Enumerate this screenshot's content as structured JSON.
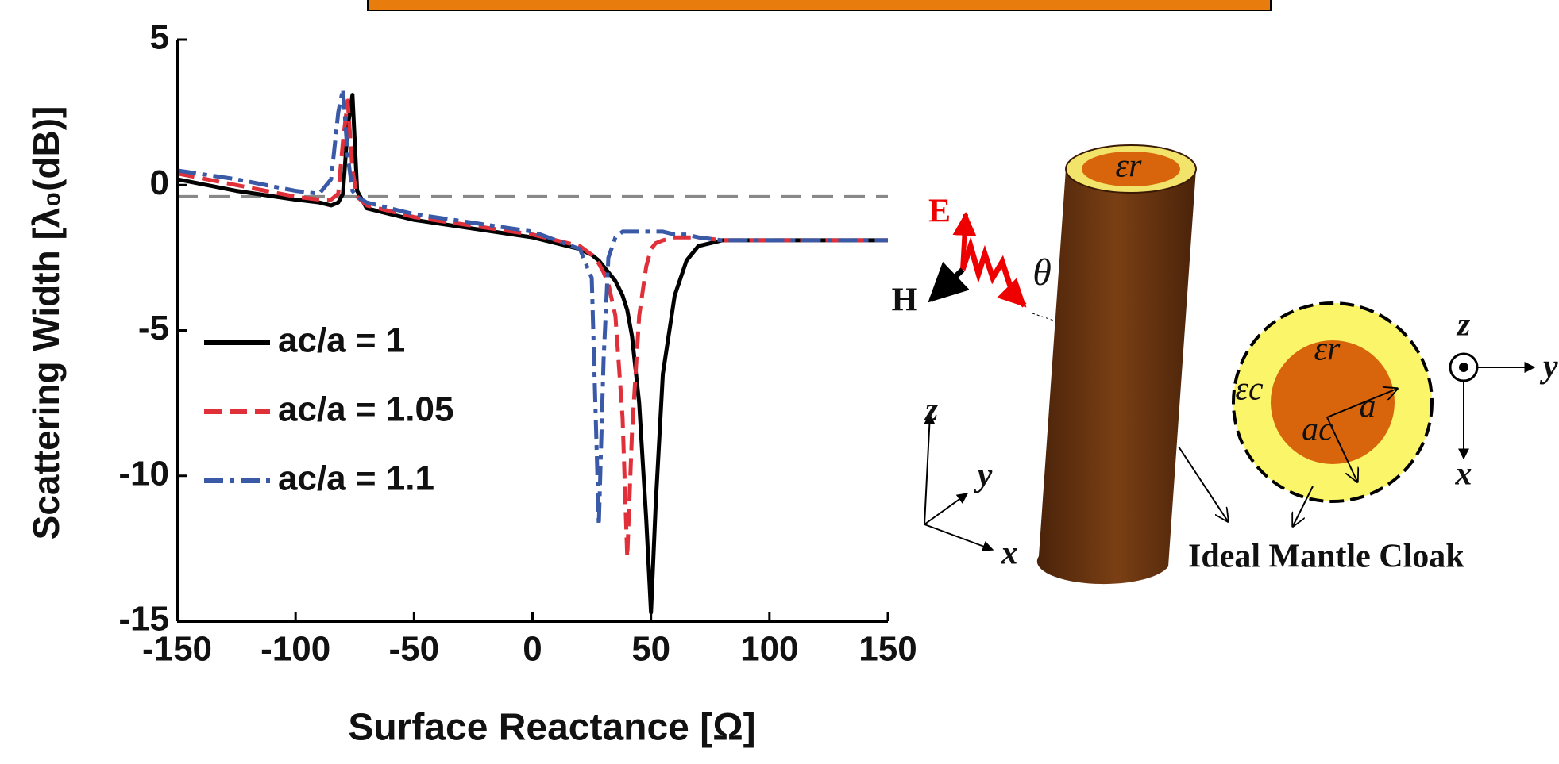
{
  "chart_data": {
    "type": "line",
    "x_label": "Surface Reactance [Ω]",
    "y_label": "Scattering Width [λ₀(dB)]",
    "x": [
      -150,
      -125,
      -100,
      -90,
      -85,
      -82,
      -80,
      -78,
      -76,
      -74,
      -70,
      -60,
      -50,
      -25,
      0,
      20,
      25,
      28,
      30,
      32,
      35,
      38,
      40,
      42,
      45,
      48,
      50,
      52,
      55,
      60,
      65,
      70,
      80,
      100,
      125,
      150
    ],
    "series": [
      {
        "name": "ac/a = 1",
        "color": "#000000",
        "style": "solid",
        "values": [
          0.2,
          -0.2,
          -0.5,
          -0.6,
          -0.7,
          -0.6,
          -0.3,
          2.0,
          3.1,
          -0.2,
          -0.8,
          -1.0,
          -1.2,
          -1.5,
          -1.8,
          -2.2,
          -2.4,
          -2.6,
          -2.8,
          -3.0,
          -3.3,
          -3.8,
          -4.3,
          -5.2,
          -7.5,
          -11.5,
          -14.7,
          -11,
          -6.5,
          -3.8,
          -2.6,
          -2.1,
          -1.9,
          -1.9,
          -1.9,
          -1.9
        ]
      },
      {
        "name": "ac/a = 1.05",
        "color": "#e0303a",
        "style": "dashed",
        "values": [
          0.4,
          0.0,
          -0.4,
          -0.5,
          -0.5,
          -0.3,
          1.5,
          2.9,
          0.5,
          -0.4,
          -0.7,
          -0.9,
          -1.1,
          -1.4,
          -1.7,
          -2.1,
          -2.4,
          -2.7,
          -3.0,
          -3.4,
          -4.5,
          -8,
          -12.8,
          -8.5,
          -4.5,
          -2.8,
          -2.2,
          -2.0,
          -1.9,
          -1.8,
          -1.8,
          -1.8,
          -1.9,
          -1.9,
          -1.9,
          -1.9
        ]
      },
      {
        "name": "ac/a = 1.1",
        "color": "#3a5aa8",
        "style": "dashdot",
        "values": [
          0.5,
          0.2,
          -0.2,
          -0.3,
          0.2,
          2.5,
          3.3,
          1.0,
          -0.2,
          -0.4,
          -0.6,
          -0.8,
          -1.0,
          -1.3,
          -1.6,
          -2.2,
          -3.2,
          -11.7,
          -6,
          -2.5,
          -1.8,
          -1.6,
          -1.6,
          -1.6,
          -1.6,
          -1.6,
          -1.6,
          -1.6,
          -1.6,
          -1.7,
          -1.7,
          -1.8,
          -1.9,
          -1.9,
          -1.9,
          -1.9
        ]
      }
    ],
    "reference_line": {
      "value": -0.4,
      "color": "#888888"
    },
    "xlim": [
      -150,
      150
    ],
    "xticks": [
      -150,
      -100,
      -50,
      0,
      50,
      100,
      150
    ],
    "ylim": [
      -15,
      5
    ],
    "yticks": [
      -15,
      -10,
      -5,
      0,
      5
    ],
    "legend": "center-left"
  },
  "diagram": {
    "eps_r_top": "εr",
    "E": "E",
    "H": "H",
    "theta": "θ",
    "z1": "z",
    "y1": "y",
    "x1": "x",
    "eps_r": "εr",
    "eps_c": "εc",
    "a": "a",
    "a_c": "ac",
    "caption": "Ideal Mantle Cloak",
    "z2": "z",
    "y2": "y",
    "x2": "x"
  }
}
